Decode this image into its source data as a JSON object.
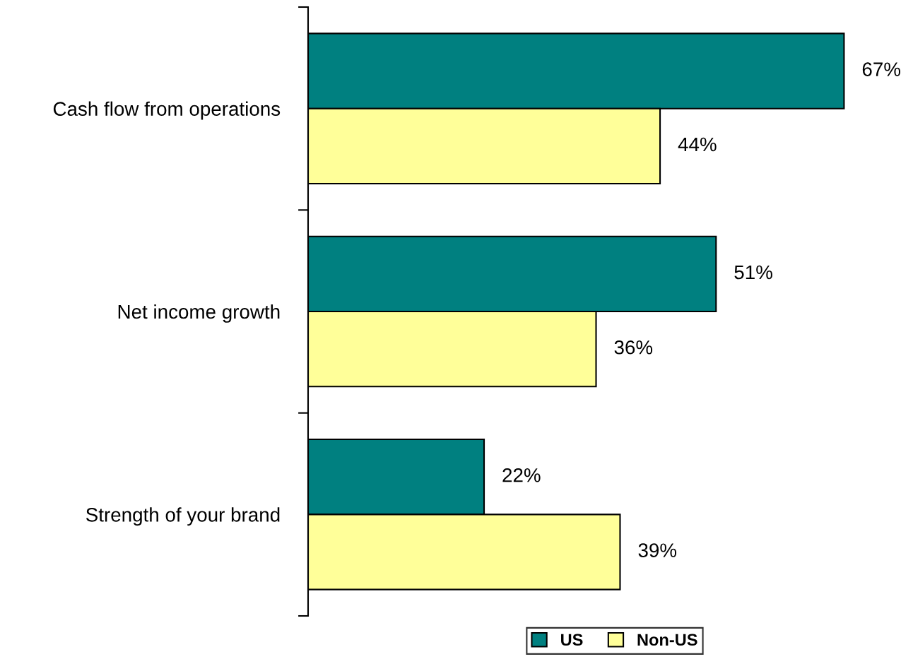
{
  "chart_data": {
    "type": "bar",
    "orientation": "horizontal",
    "categories": [
      "Cash flow from operations",
      "Net income growth",
      "Strength of your brand"
    ],
    "series": [
      {
        "name": "US",
        "color": "#008080",
        "values": [
          67,
          51,
          22
        ],
        "value_labels": [
          "67%",
          "51%",
          "22%"
        ]
      },
      {
        "name": "Non-US",
        "color": "#ffff99",
        "values": [
          44,
          36,
          39
        ],
        "value_labels": [
          "44%",
          "36%",
          "39%"
        ]
      }
    ],
    "legend": "bottom",
    "grid": false
  }
}
